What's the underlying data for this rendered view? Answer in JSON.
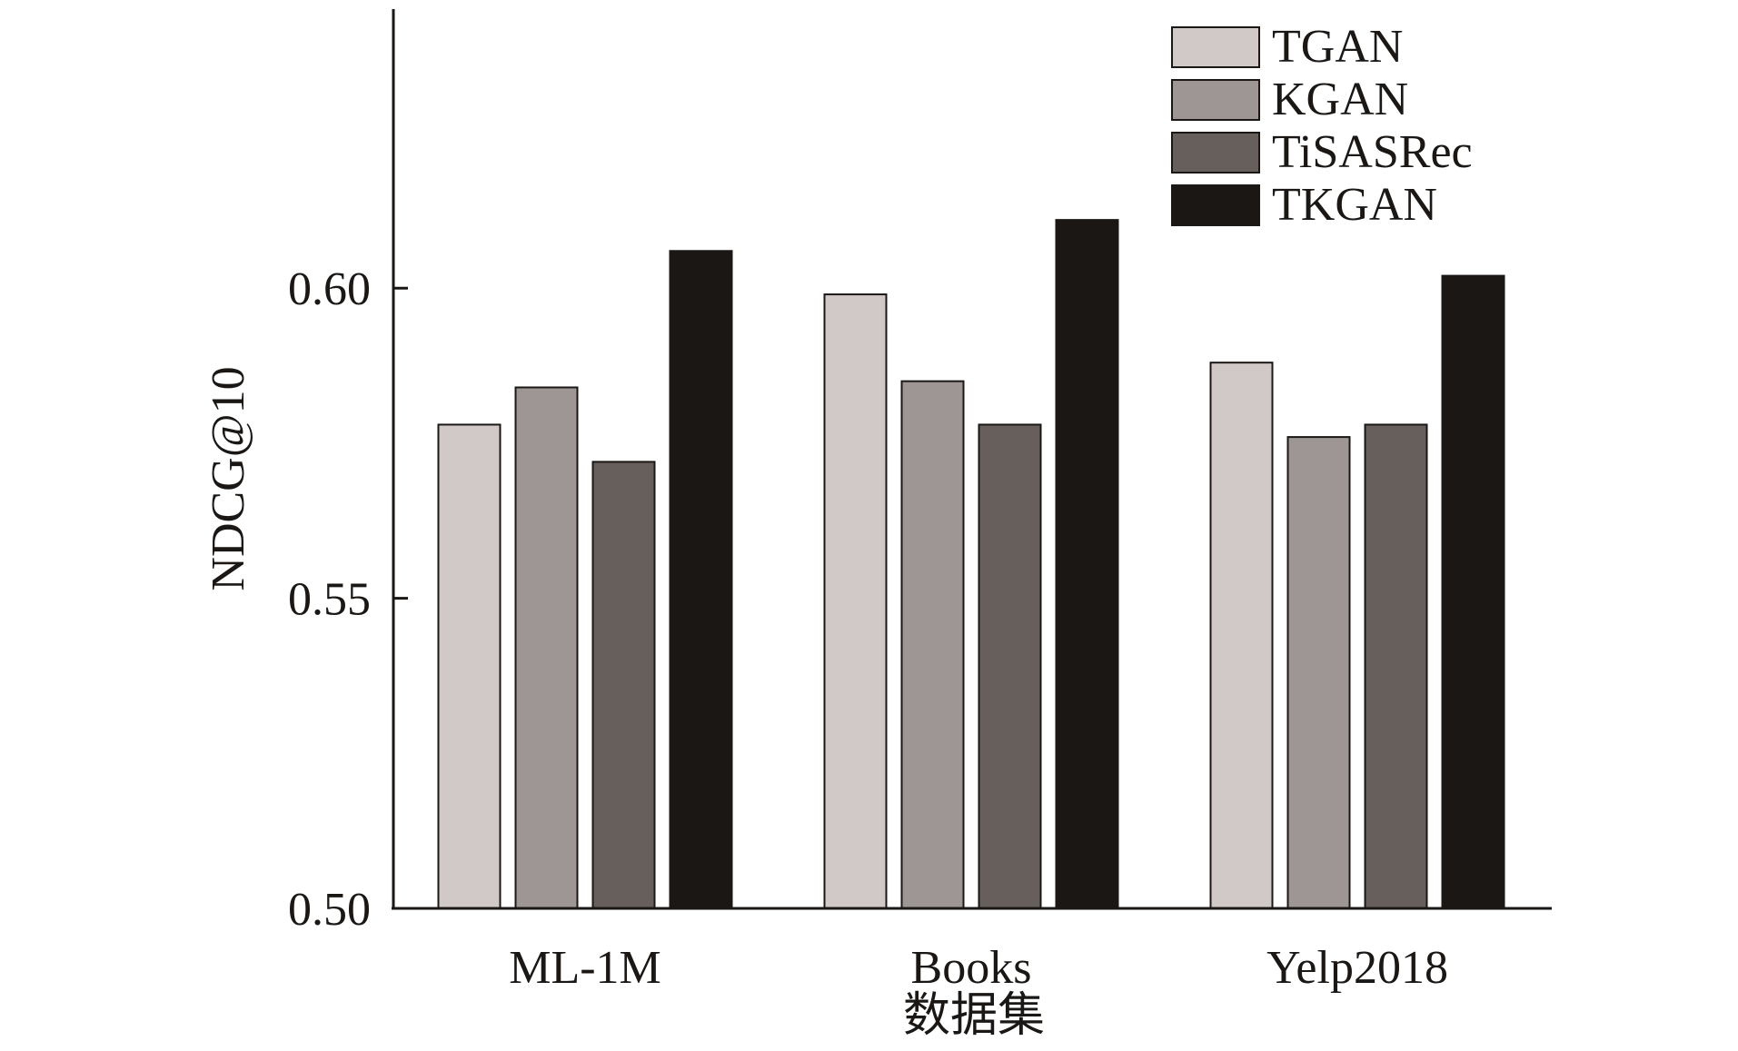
{
  "chart_data": {
    "type": "bar",
    "title": "",
    "xlabel": "数据集",
    "ylabel": "NDCG@10",
    "categories": [
      "ML-1M",
      "Books",
      "Yelp2018"
    ],
    "ylim": [
      0.5,
      0.645
    ],
    "yticks": [
      "0.50",
      "0.55",
      "0.60"
    ],
    "grid": false,
    "legend_position": "top-right",
    "series": [
      {
        "name": "TGAN",
        "color": "#d1c9c7",
        "values": [
          0.578,
          0.599,
          0.588
        ]
      },
      {
        "name": "KGAN",
        "color": "#9e9694",
        "values": [
          0.584,
          0.585,
          0.576
        ]
      },
      {
        "name": "TiSASRec",
        "color": "#675f5b",
        "values": [
          0.572,
          0.578,
          0.578
        ]
      },
      {
        "name": "TKGAN",
        "color": "#1a1715",
        "values": [
          0.606,
          0.611,
          0.602
        ]
      }
    ]
  }
}
